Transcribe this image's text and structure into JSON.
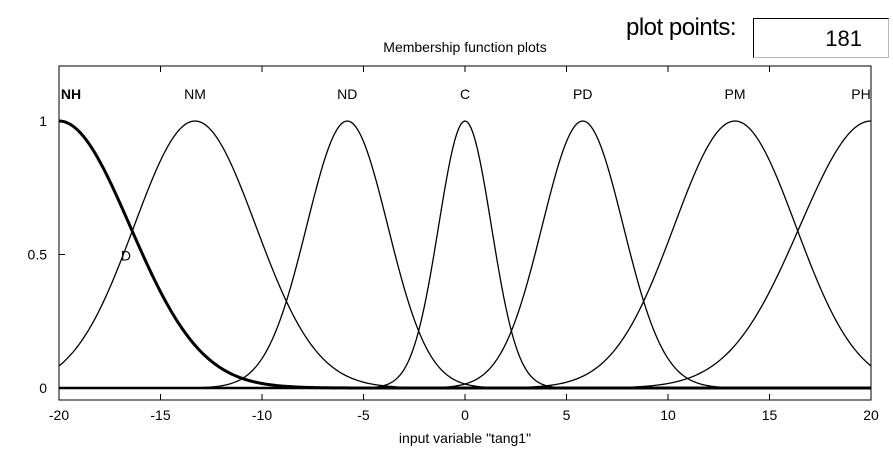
{
  "plot_points": {
    "label": "plot points:",
    "value": "181"
  },
  "chart_data": {
    "type": "line",
    "title": "Membership function plots",
    "xlabel": "input variable \"tang1\"",
    "ylabel": "",
    "xlim": [
      -20,
      20
    ],
    "ylim": [
      0,
      1
    ],
    "xticks": [
      "-20",
      "-15",
      "-10",
      "-5",
      "0",
      "5",
      "10",
      "15",
      "20"
    ],
    "yticks": [
      "0",
      "0.5",
      "1"
    ],
    "grid": false,
    "legend": "none",
    "series": [
      {
        "name": "NH",
        "shape": "gaussian",
        "center": -20,
        "sigma": 3.5,
        "highlighted": true
      },
      {
        "name": "NM",
        "shape": "gaussian",
        "center": -13.3,
        "sigma": 3.0
      },
      {
        "name": "ND",
        "shape": "gaussian",
        "center": -5.8,
        "sigma": 2.0
      },
      {
        "name": "C",
        "shape": "gaussian",
        "center": 0,
        "sigma": 1.3
      },
      {
        "name": "PD",
        "shape": "gaussian",
        "center": 5.8,
        "sigma": 2.0
      },
      {
        "name": "PM",
        "shape": "gaussian",
        "center": 13.3,
        "sigma": 3.0
      },
      {
        "name": "PH",
        "shape": "gaussian",
        "center": 20,
        "sigma": 3.5
      }
    ],
    "annotations": [
      {
        "text": "D",
        "x": -16.7,
        "y": 0.5
      }
    ]
  }
}
